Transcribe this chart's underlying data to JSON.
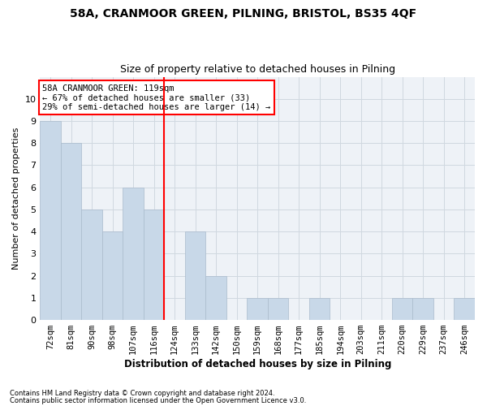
{
  "title1": "58A, CRANMOOR GREEN, PILNING, BRISTOL, BS35 4QF",
  "title2": "Size of property relative to detached houses in Pilning",
  "xlabel": "Distribution of detached houses by size in Pilning",
  "ylabel": "Number of detached properties",
  "categories": [
    "72sqm",
    "81sqm",
    "90sqm",
    "98sqm",
    "107sqm",
    "116sqm",
    "124sqm",
    "133sqm",
    "142sqm",
    "150sqm",
    "159sqm",
    "168sqm",
    "177sqm",
    "185sqm",
    "194sqm",
    "203sqm",
    "211sqm",
    "220sqm",
    "229sqm",
    "237sqm",
    "246sqm"
  ],
  "values": [
    9,
    8,
    5,
    4,
    6,
    5,
    0,
    4,
    2,
    0,
    1,
    1,
    0,
    1,
    0,
    0,
    0,
    1,
    1,
    0,
    1
  ],
  "bar_color": "#c8d8e8",
  "bar_edge_color": "#aabbcc",
  "red_line_x": 6.0,
  "annotation_title": "58A CRANMOOR GREEN: 119sqm",
  "annotation_line1": "← 67% of detached houses are smaller (33)",
  "annotation_line2": "29% of semi-detached houses are larger (14) →",
  "ylim": [
    0,
    11
  ],
  "yticks": [
    0,
    1,
    2,
    3,
    4,
    5,
    6,
    7,
    8,
    9,
    10
  ],
  "footnote1": "Contains HM Land Registry data © Crown copyright and database right 2024.",
  "footnote2": "Contains public sector information licensed under the Open Government Licence v3.0.",
  "bg_color": "#eef2f7",
  "grid_color": "#d0d8e0"
}
